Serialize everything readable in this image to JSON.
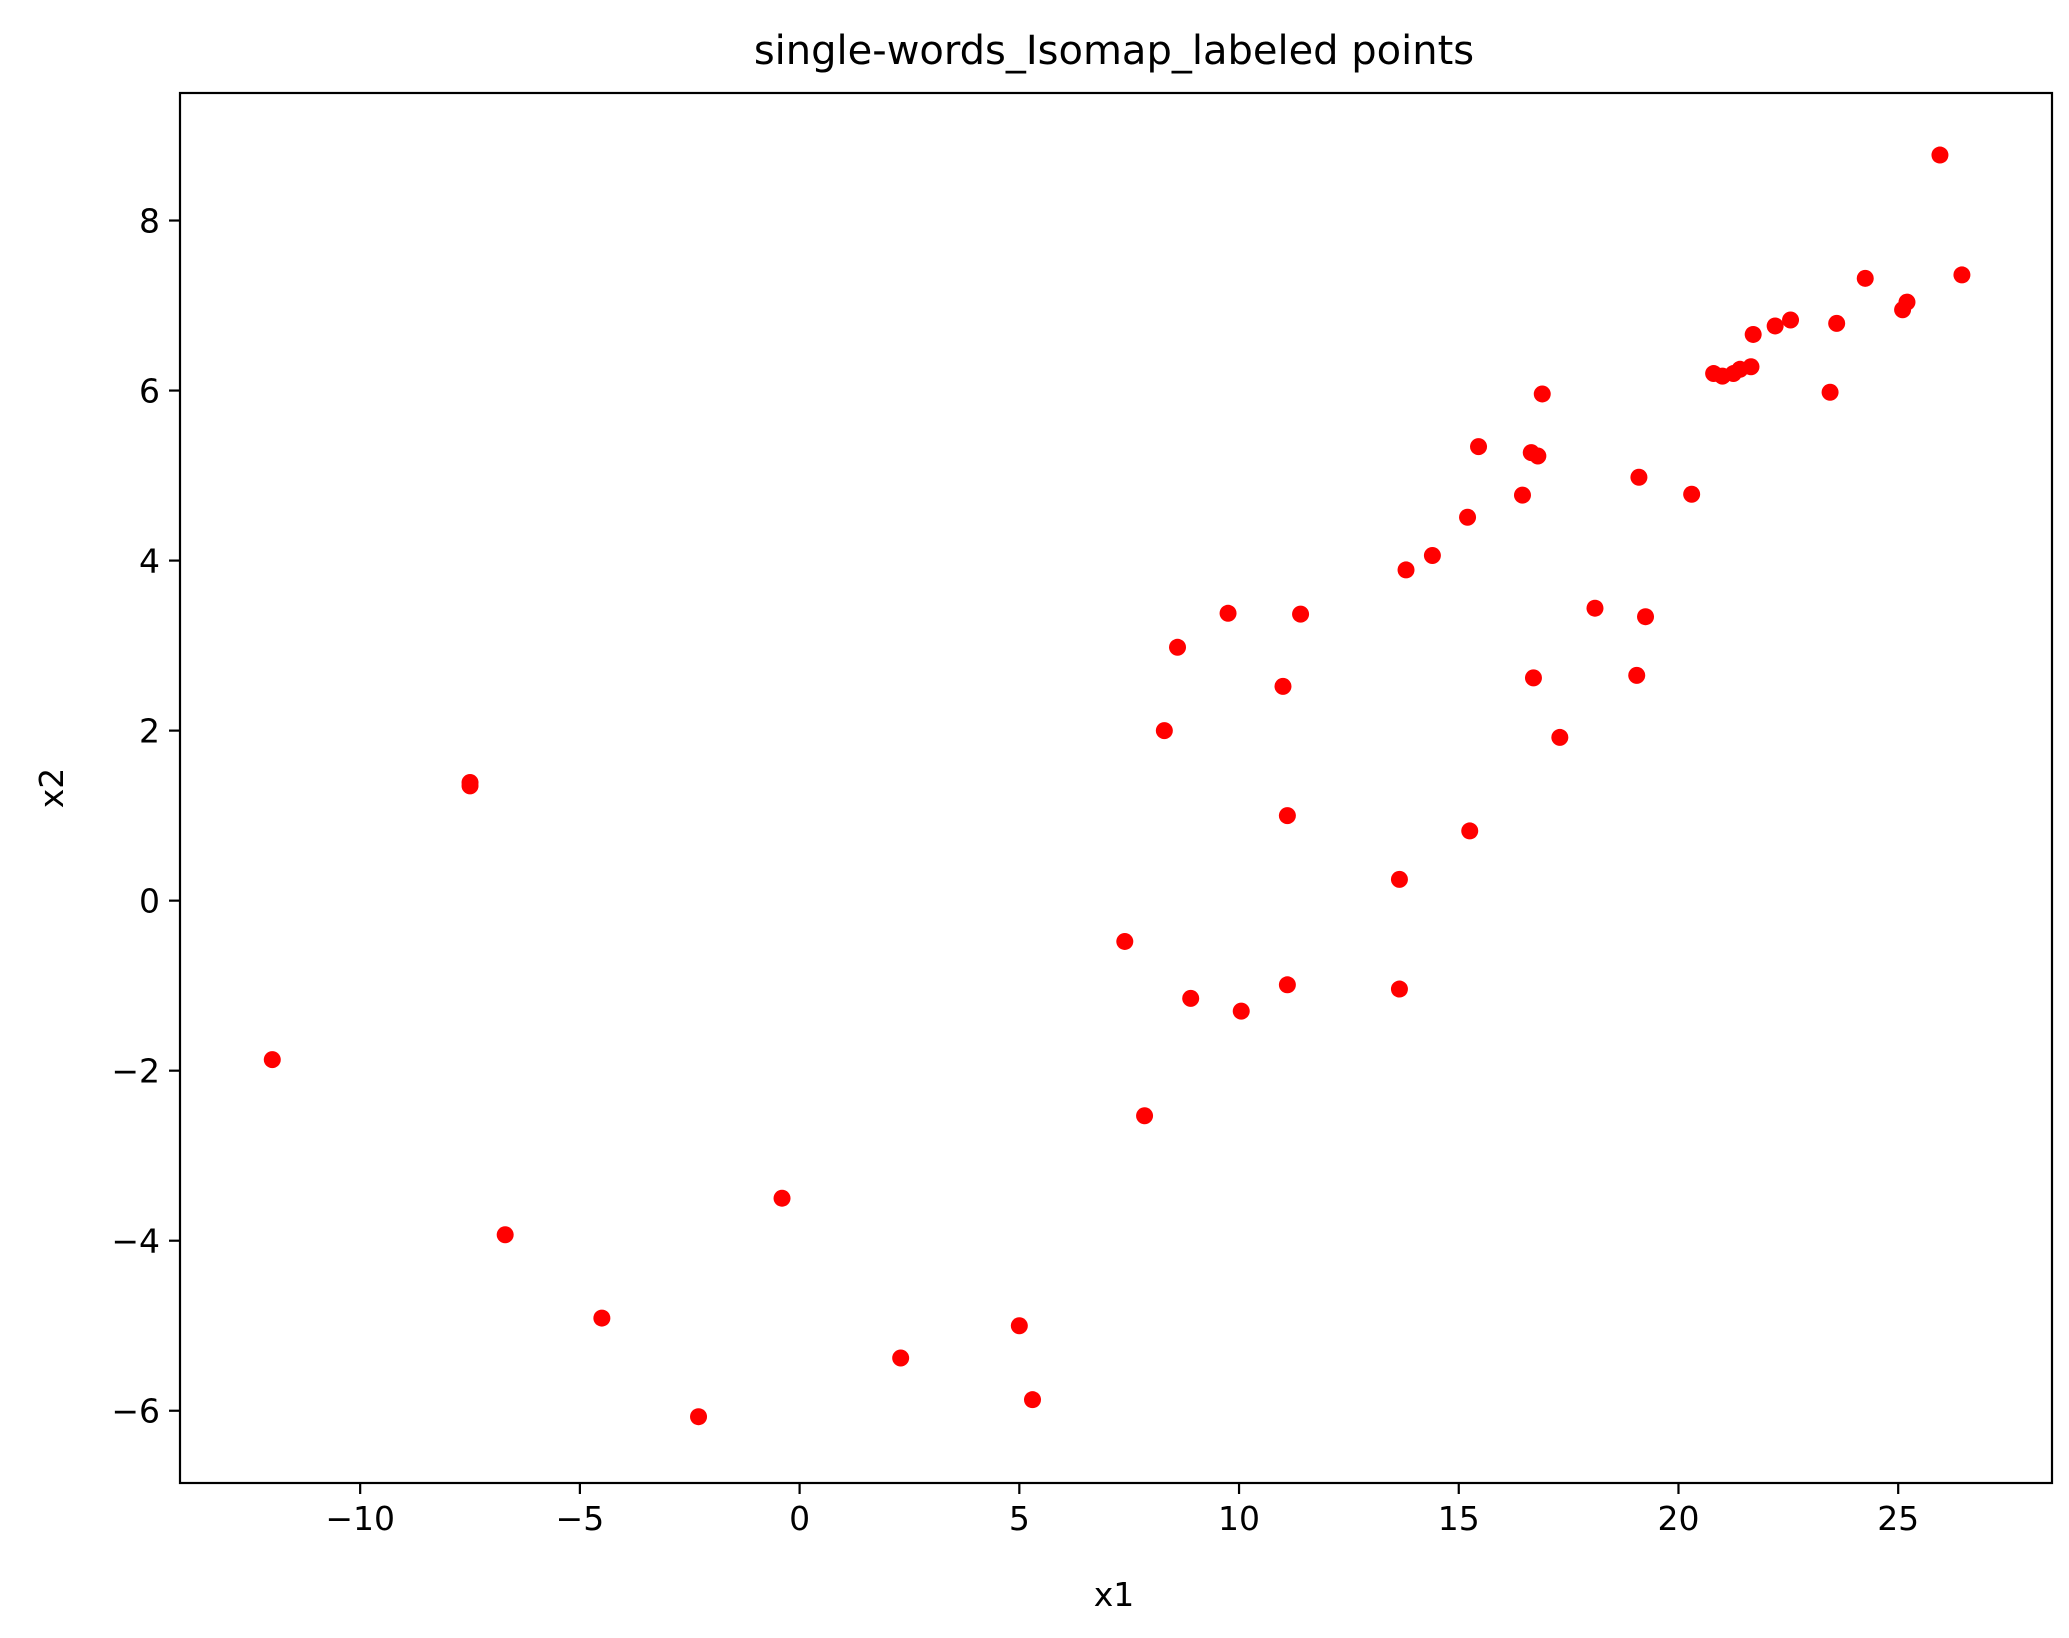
{
  "chart_data": {
    "type": "scatter",
    "title": "single-words_Isomap_labeled points",
    "xlabel": "x1",
    "ylabel": "x2",
    "xlim": [
      -14.1,
      28.5
    ],
    "ylim": [
      -6.85,
      9.5
    ],
    "xticks": [
      -10,
      -5,
      0,
      5,
      10,
      15,
      20,
      25
    ],
    "xtick_labels": [
      "−10",
      "−5",
      "0",
      "5",
      "10",
      "15",
      "20",
      "25"
    ],
    "yticks": [
      -6,
      -4,
      -2,
      0,
      2,
      4,
      6,
      8
    ],
    "ytick_labels": [
      "−6",
      "−4",
      "−2",
      "0",
      "2",
      "4",
      "6",
      "8"
    ],
    "grid": false,
    "marker_color": "#ff0000",
    "points": [
      {
        "x": -12.0,
        "y": -1.87
      },
      {
        "x": -7.5,
        "y": 1.35
      },
      {
        "x": -7.5,
        "y": 1.39
      },
      {
        "x": -6.7,
        "y": -3.93
      },
      {
        "x": -4.5,
        "y": -4.91
      },
      {
        "x": -2.3,
        "y": -6.07
      },
      {
        "x": -0.4,
        "y": -3.5
      },
      {
        "x": 2.3,
        "y": -5.38
      },
      {
        "x": 5.0,
        "y": -5.0
      },
      {
        "x": 5.3,
        "y": -5.87
      },
      {
        "x": 7.4,
        "y": -0.48
      },
      {
        "x": 7.85,
        "y": -2.53
      },
      {
        "x": 8.3,
        "y": 2.0
      },
      {
        "x": 8.6,
        "y": 2.98
      },
      {
        "x": 8.9,
        "y": -1.15
      },
      {
        "x": 9.75,
        "y": 3.38
      },
      {
        "x": 10.05,
        "y": -1.3
      },
      {
        "x": 11.0,
        "y": 2.52
      },
      {
        "x": 11.1,
        "y": 1.0
      },
      {
        "x": 11.1,
        "y": -0.99
      },
      {
        "x": 11.4,
        "y": 3.37
      },
      {
        "x": 13.65,
        "y": 0.25
      },
      {
        "x": 13.65,
        "y": -1.04
      },
      {
        "x": 13.8,
        "y": 3.89
      },
      {
        "x": 14.4,
        "y": 4.06
      },
      {
        "x": 15.2,
        "y": 4.51
      },
      {
        "x": 15.25,
        "y": 0.82
      },
      {
        "x": 15.45,
        "y": 5.34
      },
      {
        "x": 16.45,
        "y": 4.77
      },
      {
        "x": 16.65,
        "y": 5.27
      },
      {
        "x": 16.7,
        "y": 2.62
      },
      {
        "x": 16.8,
        "y": 5.23
      },
      {
        "x": 16.9,
        "y": 5.96
      },
      {
        "x": 17.3,
        "y": 1.92
      },
      {
        "x": 18.1,
        "y": 3.44
      },
      {
        "x": 19.05,
        "y": 2.65
      },
      {
        "x": 19.1,
        "y": 4.98
      },
      {
        "x": 19.25,
        "y": 3.34
      },
      {
        "x": 20.3,
        "y": 4.78
      },
      {
        "x": 20.8,
        "y": 6.2
      },
      {
        "x": 21.0,
        "y": 6.17
      },
      {
        "x": 21.25,
        "y": 6.2
      },
      {
        "x": 21.4,
        "y": 6.25
      },
      {
        "x": 21.65,
        "y": 6.28
      },
      {
        "x": 21.7,
        "y": 6.66
      },
      {
        "x": 22.2,
        "y": 6.76
      },
      {
        "x": 22.55,
        "y": 6.83
      },
      {
        "x": 23.45,
        "y": 5.98
      },
      {
        "x": 23.6,
        "y": 6.79
      },
      {
        "x": 24.25,
        "y": 7.32
      },
      {
        "x": 25.1,
        "y": 6.95
      },
      {
        "x": 25.2,
        "y": 7.04
      },
      {
        "x": 25.95,
        "y": 8.77
      },
      {
        "x": 26.45,
        "y": 7.36
      }
    ]
  }
}
